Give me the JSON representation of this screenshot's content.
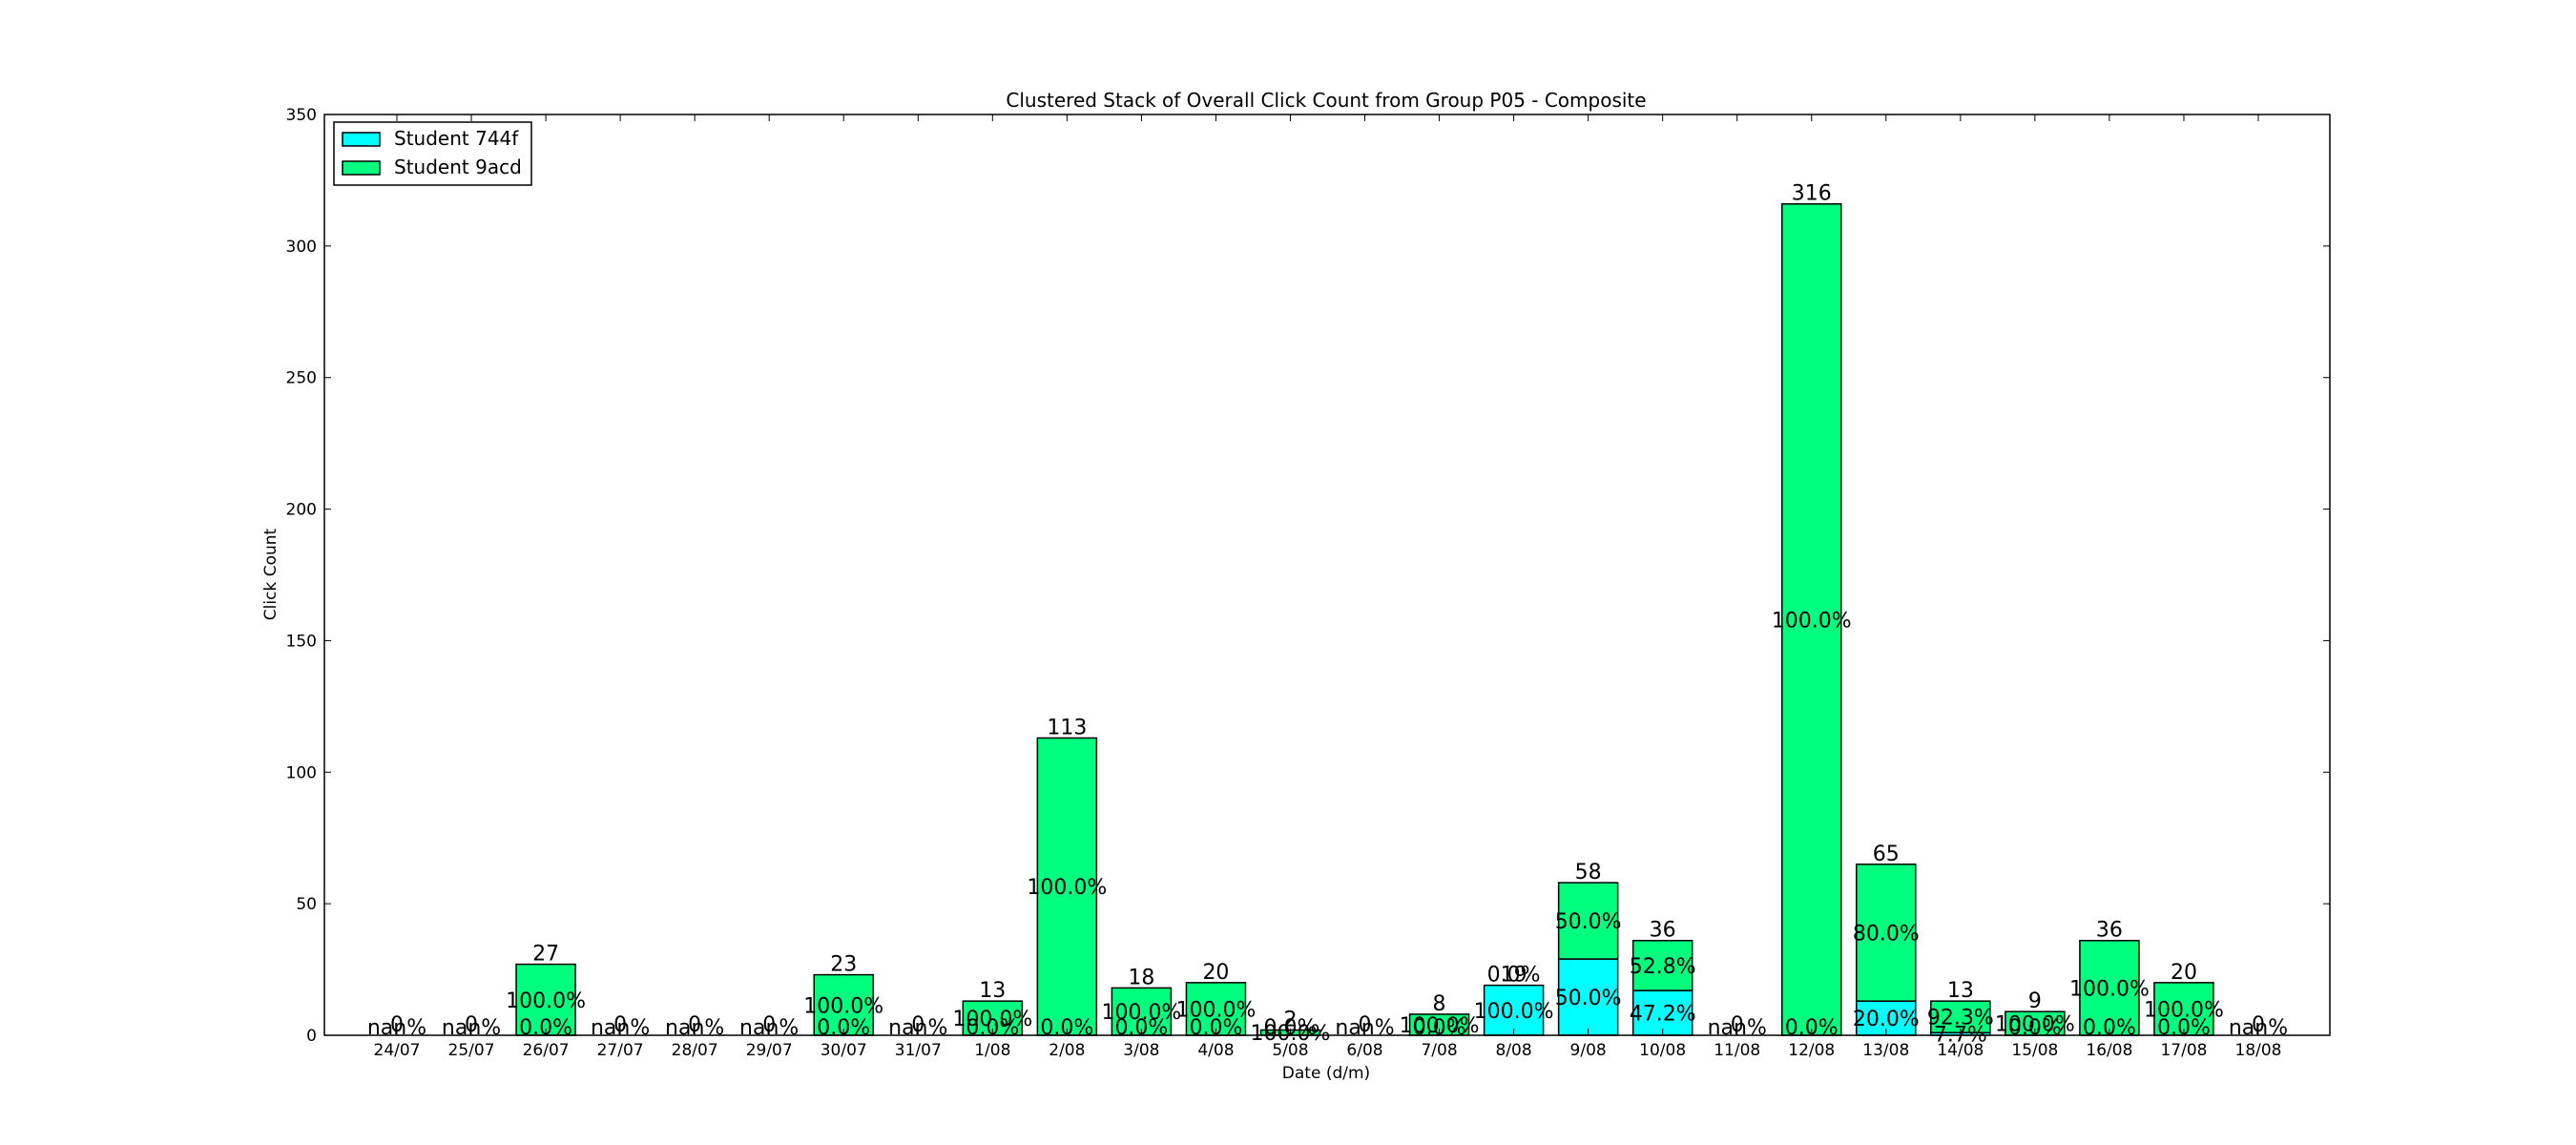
{
  "chart_data": {
    "type": "bar",
    "stacked": true,
    "title": "Clustered Stack of Overall Click Count from Group P05 - Composite",
    "xlabel": "Date (d/m)",
    "ylabel": "Click Count",
    "ylim": [
      0,
      350
    ],
    "yticks": [
      0,
      50,
      100,
      150,
      200,
      250,
      300,
      350
    ],
    "grid": false,
    "legend_position": "top-left",
    "categories": [
      "24/07",
      "25/07",
      "26/07",
      "27/07",
      "28/07",
      "29/07",
      "30/07",
      "31/07",
      "1/08",
      "2/08",
      "3/08",
      "4/08",
      "5/08",
      "6/08",
      "7/08",
      "8/08",
      "9/08",
      "10/08",
      "11/08",
      "12/08",
      "13/08",
      "14/08",
      "15/08",
      "16/08",
      "17/08",
      "18/08"
    ],
    "series": [
      {
        "name": "Student 744f",
        "color": "#00ffff",
        "values": [
          0,
          0,
          0,
          0,
          0,
          0,
          0,
          0,
          0,
          0,
          0,
          0,
          0,
          0,
          0,
          19,
          29,
          17,
          0,
          0,
          13,
          1,
          0,
          0,
          0,
          0
        ]
      },
      {
        "name": "Student 9acd",
        "color": "#00ff7f",
        "values": [
          0,
          0,
          27,
          0,
          0,
          0,
          23,
          0,
          13,
          113,
          18,
          20,
          2,
          0,
          8,
          0,
          29,
          19,
          0,
          316,
          52,
          12,
          9,
          36,
          20,
          0
        ]
      }
    ],
    "totals": [
      "0",
      "0",
      "27",
      "0",
      "0",
      "0",
      "23",
      "0",
      "13",
      "113",
      "18",
      "20",
      "2",
      "0",
      "8",
      "19",
      "58",
      "36",
      "0",
      "316",
      "65",
      "13",
      "9",
      "36",
      "20",
      "0"
    ],
    "pct_744f": [
      "nan%",
      "nan%",
      "0.0%",
      "nan%",
      "nan%",
      "nan%",
      "0.0%",
      "nan%",
      "0.0%",
      "0.0%",
      "0.0%",
      "0.0%",
      "0.0%",
      "nan%",
      "0.0%",
      "100.0%",
      "50.0%",
      "47.2%",
      "nan%",
      "0.0%",
      "20.0%",
      "7.7%",
      "0.0%",
      "0.0%",
      "0.0%",
      "nan%"
    ],
    "pct_9acd": [
      "",
      "",
      "100.0%",
      "",
      "",
      "",
      "100.0%",
      "",
      "100.0%",
      "100.0%",
      "100.0%",
      "100.0%",
      "100.0%",
      "",
      "100.0%",
      "0.0%",
      "50.0%",
      "52.8%",
      "",
      "100.0%",
      "80.0%",
      "92.3%",
      "100.0%",
      "100.0%",
      "100.0%",
      ""
    ]
  }
}
